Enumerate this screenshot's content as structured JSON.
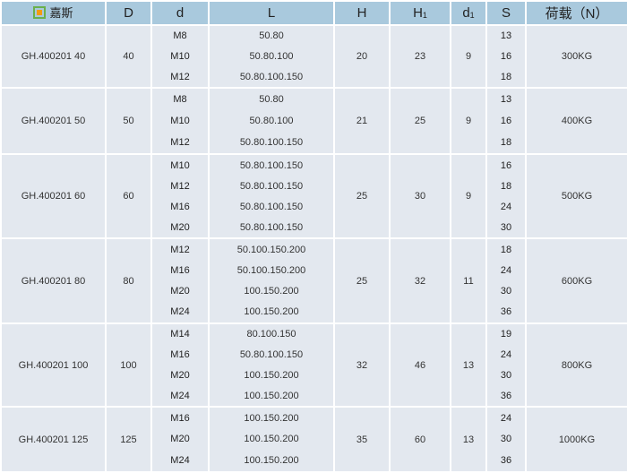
{
  "header": {
    "brand": "嘉斯",
    "cols": [
      "D",
      "d",
      "L",
      "H",
      "H",
      "d",
      "S",
      "荷载（N）"
    ],
    "sub_h1": "1",
    "sub_d1": "1"
  },
  "groups": [
    {
      "model": "GH.400201  40",
      "D": "40",
      "d": [
        "M8",
        "M10",
        "M12"
      ],
      "L": [
        "50.80",
        "50.80.100",
        "50.80.100.150"
      ],
      "H": "20",
      "H1": "23",
      "d1": "9",
      "S": [
        "13",
        "16",
        "18"
      ],
      "load": "300KG"
    },
    {
      "model": "GH.400201  50",
      "D": "50",
      "d": [
        "M8",
        "M10",
        "M12"
      ],
      "L": [
        "50.80",
        "50.80.100",
        "50.80.100.150"
      ],
      "H": "21",
      "H1": "25",
      "d1": "9",
      "S": [
        "13",
        "16",
        "18"
      ],
      "load": "400KG"
    },
    {
      "model": "GH.400201  60",
      "D": "60",
      "d": [
        "M10",
        "M12",
        "M16",
        "M20"
      ],
      "L": [
        "50.80.100.150",
        "50.80.100.150",
        "50.80.100.150",
        "50.80.100.150"
      ],
      "H": "25",
      "H1": "30",
      "d1": "9",
      "S": [
        "16",
        "18",
        "24",
        "30"
      ],
      "load": "500KG"
    },
    {
      "model": "GH.400201  80",
      "D": "80",
      "d": [
        "M12",
        "M16",
        "M20",
        "M24"
      ],
      "L": [
        "50.100.150.200",
        "50.100.150.200",
        "100.150.200",
        "100.150.200"
      ],
      "H": "25",
      "H1": "32",
      "d1": "11",
      "S": [
        "18",
        "24",
        "30",
        "36"
      ],
      "load": "600KG"
    },
    {
      "model": "GH.400201  100",
      "D": "100",
      "d": [
        "M14",
        "M16",
        "M20",
        "M24"
      ],
      "L": [
        "80.100.150",
        "50.80.100.150",
        "100.150.200",
        "100.150.200"
      ],
      "H": "32",
      "H1": "46",
      "d1": "13",
      "S": [
        "19",
        "24",
        "30",
        "36"
      ],
      "load": "800KG"
    },
    {
      "model": "GH.400201  125",
      "D": "125",
      "d": [
        "M16",
        "M20",
        "M24"
      ],
      "L": [
        "100.150.200",
        "100.150.200",
        "100.150.200"
      ],
      "H": "35",
      "H1": "60",
      "d1": "13",
      "S": [
        "24",
        "30",
        "36"
      ],
      "load": "1000KG"
    }
  ]
}
